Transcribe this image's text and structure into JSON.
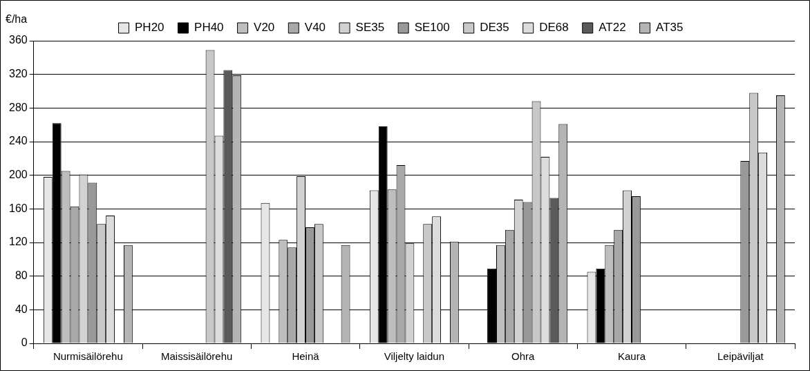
{
  "chart_data": {
    "type": "bar",
    "ylabel": "€/ha",
    "categories": [
      "Nurmisäilörehu",
      "Maissisäilörehu",
      "Heinä",
      "Viljelty laidun",
      "Ohra",
      "Kaura",
      "Leipäviljat"
    ],
    "series": [
      {
        "name": "PH20",
        "color": "#e6e6e6",
        "values": [
          198,
          null,
          167,
          182,
          null,
          85,
          null
        ]
      },
      {
        "name": "PH40",
        "color": "#000000",
        "values": [
          262,
          null,
          null,
          258,
          89,
          89,
          null
        ]
      },
      {
        "name": "V20",
        "color": "#bebebe",
        "values": [
          205,
          null,
          123,
          183,
          117,
          117,
          null
        ]
      },
      {
        "name": "V40",
        "color": "#a8a8a8",
        "values": [
          163,
          null,
          114,
          212,
          135,
          135,
          null
        ]
      },
      {
        "name": "SE35",
        "color": "#d2d2d2",
        "values": [
          201,
          null,
          199,
          119,
          171,
          182,
          null
        ]
      },
      {
        "name": "SE100",
        "color": "#999999",
        "values": [
          191,
          null,
          138,
          null,
          168,
          175,
          217
        ]
      },
      {
        "name": "DE35",
        "color": "#c8c8c8",
        "values": [
          142,
          349,
          142,
          142,
          288,
          null,
          298
        ]
      },
      {
        "name": "DE68",
        "color": "#dcdcdc",
        "values": [
          152,
          247,
          null,
          151,
          222,
          null,
          227
        ]
      },
      {
        "name": "AT22",
        "color": "#5a5a5a",
        "values": [
          null,
          325,
          null,
          null,
          173,
          null,
          null
        ]
      },
      {
        "name": "AT35",
        "color": "#b4b4b4",
        "values": [
          117,
          319,
          117,
          121,
          261,
          null,
          295
        ]
      }
    ],
    "ylim": [
      0,
      360
    ],
    "yticks": [
      0,
      40,
      80,
      120,
      160,
      200,
      240,
      280,
      320,
      360
    ],
    "grid": "y",
    "legend": "top"
  }
}
